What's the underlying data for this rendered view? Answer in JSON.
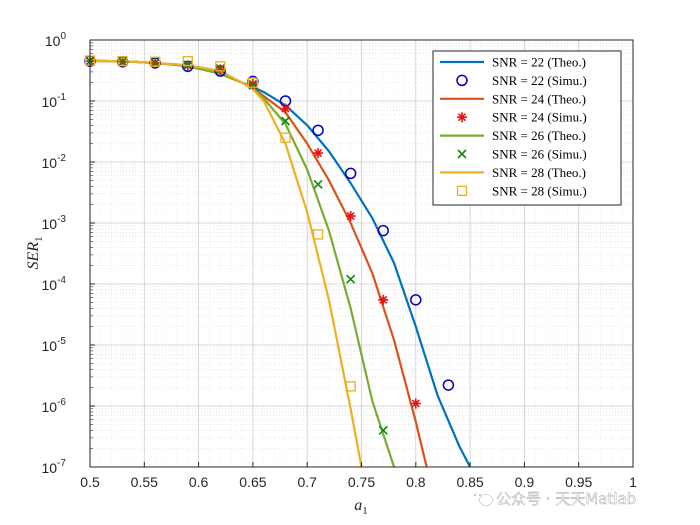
{
  "chart_data": {
    "type": "line",
    "xlabel": "a",
    "xlabel_sub": "1",
    "ylabel": "SER",
    "ylabel_sub": "1",
    "xlim": [
      0.5,
      1
    ],
    "ylim": [
      1e-07,
      1
    ],
    "yscale": "log",
    "grid": true,
    "x_ticks": [
      "0.5",
      "0.55",
      "0.6",
      "0.65",
      "0.7",
      "0.75",
      "0.8",
      "0.85",
      "0.9",
      "0.95",
      "1"
    ],
    "y_ticks": [
      {
        "base": "10",
        "exp": "0",
        "value": 1
      },
      {
        "base": "10",
        "exp": "-1",
        "value": 0.1
      },
      {
        "base": "10",
        "exp": "-2",
        "value": 0.01
      },
      {
        "base": "10",
        "exp": "-3",
        "value": 0.001
      },
      {
        "base": "10",
        "exp": "-4",
        "value": 0.0001
      },
      {
        "base": "10",
        "exp": "-5",
        "value": 1e-05
      },
      {
        "base": "10",
        "exp": "-6",
        "value": 1e-06
      },
      {
        "base": "10",
        "exp": "-7",
        "value": 1e-07
      }
    ],
    "legend_location": "top-right",
    "series": [
      {
        "name": "SNR = 22 (Theo.)",
        "kind": "line",
        "color": "#0072BD",
        "x": [
          0.5,
          0.52,
          0.54,
          0.56,
          0.58,
          0.6,
          0.62,
          0.64,
          0.65,
          0.66,
          0.68,
          0.7,
          0.72,
          0.74,
          0.76,
          0.78,
          0.8,
          0.82,
          0.84,
          0.85
        ],
        "y": [
          0.455,
          0.45,
          0.44,
          0.42,
          0.39,
          0.34,
          0.28,
          0.2,
          0.17,
          0.14,
          0.085,
          0.04,
          0.015,
          0.0045,
          0.0012,
          0.00022,
          2e-05,
          1.5e-06,
          2.2e-07,
          1e-07
        ]
      },
      {
        "name": "SNR = 22 (Simu.)",
        "kind": "marker",
        "marker": "circle",
        "color": "#0000BB",
        "x": [
          0.5,
          0.53,
          0.56,
          0.59,
          0.62,
          0.65,
          0.68,
          0.71,
          0.74,
          0.77,
          0.8,
          0.83
        ],
        "y": [
          0.45,
          0.44,
          0.42,
          0.37,
          0.31,
          0.21,
          0.1,
          0.033,
          0.0065,
          0.00075,
          5.5e-05,
          2.2e-06
        ]
      },
      {
        "name": "SNR = 24 (Theo.)",
        "kind": "line",
        "color": "#D95319",
        "x": [
          0.5,
          0.52,
          0.54,
          0.56,
          0.58,
          0.6,
          0.62,
          0.64,
          0.65,
          0.66,
          0.68,
          0.7,
          0.72,
          0.74,
          0.76,
          0.78,
          0.8,
          0.81
        ],
        "y": [
          0.455,
          0.45,
          0.44,
          0.42,
          0.39,
          0.34,
          0.28,
          0.2,
          0.165,
          0.12,
          0.065,
          0.02,
          0.005,
          0.001,
          0.00015,
          1.2e-05,
          5.5e-07,
          1e-07
        ]
      },
      {
        "name": "SNR = 24 (Simu.)",
        "kind": "marker",
        "marker": "star",
        "color": "#EE1111",
        "x": [
          0.5,
          0.53,
          0.56,
          0.59,
          0.62,
          0.65,
          0.68,
          0.71,
          0.74,
          0.77,
          0.8
        ],
        "y": [
          0.45,
          0.44,
          0.42,
          0.38,
          0.33,
          0.19,
          0.075,
          0.014,
          0.0013,
          5.5e-05,
          1.1e-06
        ]
      },
      {
        "name": "SNR = 26 (Theo.)",
        "kind": "line",
        "color": "#77AC30",
        "x": [
          0.5,
          0.52,
          0.54,
          0.56,
          0.58,
          0.6,
          0.62,
          0.64,
          0.65,
          0.66,
          0.68,
          0.7,
          0.72,
          0.74,
          0.76,
          0.78
        ],
        "y": [
          0.455,
          0.45,
          0.44,
          0.42,
          0.39,
          0.34,
          0.28,
          0.2,
          0.16,
          0.11,
          0.042,
          0.0075,
          0.00075,
          4e-05,
          1.2e-06,
          1e-07
        ]
      },
      {
        "name": "SNR = 26 (Simu.)",
        "kind": "marker",
        "marker": "x",
        "color": "#118811",
        "x": [
          0.5,
          0.53,
          0.56,
          0.59,
          0.62,
          0.65,
          0.68,
          0.71,
          0.74,
          0.77
        ],
        "y": [
          0.45,
          0.44,
          0.43,
          0.39,
          0.34,
          0.18,
          0.047,
          0.0043,
          0.00012,
          4e-07
        ]
      },
      {
        "name": "SNR = 28 (Theo.)",
        "kind": "line",
        "color": "#EDB120",
        "x": [
          0.5,
          0.52,
          0.54,
          0.56,
          0.58,
          0.6,
          0.62,
          0.64,
          0.65,
          0.66,
          0.68,
          0.7,
          0.72,
          0.74,
          0.75
        ],
        "y": [
          0.455,
          0.45,
          0.44,
          0.42,
          0.4,
          0.36,
          0.31,
          0.2,
          0.155,
          0.1,
          0.02,
          0.0015,
          5.5e-05,
          9e-07,
          1e-07
        ]
      },
      {
        "name": "SNR = 28 (Simu.)",
        "kind": "marker",
        "marker": "square",
        "color": "#E8B020",
        "x": [
          0.5,
          0.53,
          0.56,
          0.59,
          0.62,
          0.65,
          0.68,
          0.71,
          0.74
        ],
        "y": [
          0.46,
          0.45,
          0.44,
          0.45,
          0.37,
          0.2,
          0.025,
          0.00065,
          2.1e-06
        ]
      }
    ]
  },
  "watermark": {
    "icon": "wechat-icon",
    "text": "公众号 · 天天Matlab"
  }
}
